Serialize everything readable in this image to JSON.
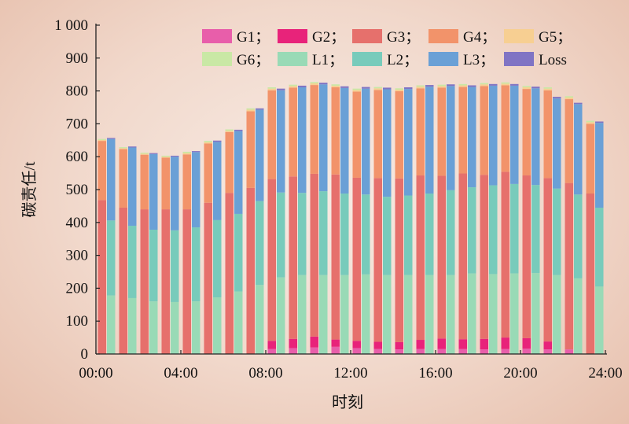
{
  "chart_data": {
    "type": "bar",
    "subtype": "stacked, two bars per hour (generation responsibility and load responsibility)",
    "xlabel": "时刻",
    "ylabel": "碳责任/t",
    "ylim": [
      0,
      1000
    ],
    "y_ticks": [
      "0",
      "100",
      "200",
      "300",
      "400",
      "500",
      "600",
      "700",
      "800",
      "900",
      "1 000"
    ],
    "x_ticks": [
      "00:00",
      "04:00",
      "08:00",
      "12:00",
      "16:00",
      "20:00",
      "24:00"
    ],
    "legend_placement": "top-right",
    "legend": [
      {
        "name": "G1；",
        "color": "#e85eaa"
      },
      {
        "name": "G2；",
        "color": "#e8237a"
      },
      {
        "name": "G3；",
        "color": "#e6706c"
      },
      {
        "name": "G4；",
        "color": "#f2936a"
      },
      {
        "name": "G5；",
        "color": "#f7cf92"
      },
      {
        "name": "G6；",
        "color": "#c9e8a5"
      },
      {
        "name": "L1；",
        "color": "#99dab6"
      },
      {
        "name": "L2；",
        "color": "#78cbbb"
      },
      {
        "name": "L3；",
        "color": "#6aa0d6"
      },
      {
        "name": "Loss",
        "color": "#8074c4"
      }
    ],
    "hours": 24,
    "generation_series": [
      {
        "name": "G1",
        "values": [
          0,
          0,
          0,
          0,
          0,
          0,
          0,
          0,
          15,
          18,
          20,
          22,
          18,
          15,
          14,
          15,
          15,
          15,
          14,
          15,
          16,
          14,
          14,
          0
        ]
      },
      {
        "name": "G2",
        "values": [
          0,
          0,
          0,
          0,
          0,
          0,
          0,
          0,
          25,
          28,
          33,
          22,
          22,
          22,
          22,
          28,
          32,
          30,
          32,
          35,
          32,
          24,
          0,
          0
        ]
      },
      {
        "name": "G3",
        "values": [
          468,
          445,
          440,
          440,
          440,
          460,
          490,
          505,
          492,
          494,
          495,
          502,
          496,
          498,
          498,
          500,
          495,
          504,
          499,
          504,
          495,
          497,
          506,
          488
        ]
      },
      {
        "name": "G4",
        "values": [
          180,
          178,
          166,
          157,
          167,
          180,
          185,
          233,
          270,
          270,
          270,
          265,
          262,
          268,
          265,
          265,
          268,
          263,
          270,
          263,
          263,
          267,
          255,
          212
        ]
      },
      {
        "name": "G5",
        "values": [
          3,
          3,
          3,
          3,
          4,
          4,
          4,
          5,
          5,
          5,
          5,
          5,
          5,
          5,
          5,
          5,
          5,
          5,
          5,
          5,
          5,
          5,
          5,
          5
        ]
      },
      {
        "name": "G6",
        "values": [
          3,
          3,
          3,
          3,
          4,
          4,
          4,
          4,
          4,
          4,
          4,
          4,
          4,
          4,
          4,
          4,
          4,
          4,
          4,
          4,
          4,
          4,
          4,
          4
        ]
      }
    ],
    "load_series": [
      {
        "name": "L1",
        "values": [
          178,
          170,
          160,
          158,
          160,
          172,
          190,
          210,
          233,
          240,
          240,
          240,
          242,
          240,
          240,
          240,
          240,
          245,
          243,
          245,
          246,
          240,
          230,
          205
        ]
      },
      {
        "name": "L2",
        "values": [
          228,
          220,
          218,
          218,
          225,
          235,
          236,
          255,
          258,
          250,
          255,
          248,
          243,
          238,
          242,
          248,
          258,
          262,
          270,
          272,
          268,
          263,
          255,
          240
        ]
      },
      {
        "name": "L3",
        "values": [
          248,
          238,
          230,
          224,
          229,
          238,
          252,
          278,
          311,
          321,
          325,
          321,
          322,
          327,
          324,
          325,
          317,
          305,
          303,
          299,
          294,
          274,
          275,
          258
        ]
      },
      {
        "name": "Loss",
        "values": [
          3,
          3,
          3,
          3,
          3,
          4,
          4,
          4,
          5,
          5,
          5,
          5,
          5,
          5,
          5,
          5,
          5,
          5,
          5,
          5,
          5,
          5,
          4,
          4
        ]
      }
    ]
  }
}
